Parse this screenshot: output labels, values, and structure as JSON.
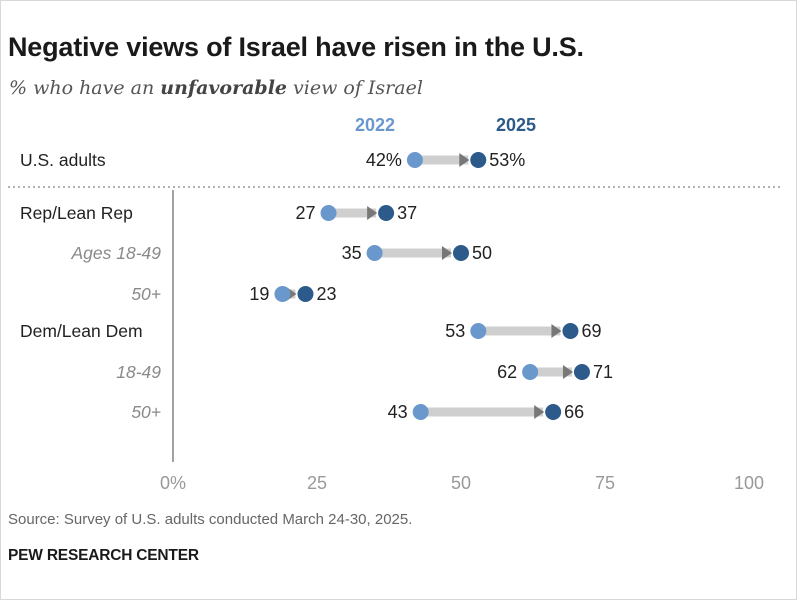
{
  "title": "Negative views of Israel have risen in the U.S.",
  "subtitle": {
    "prefix": "% who have an ",
    "emphasis": "unfavorable",
    "suffix": " view of Israel"
  },
  "source": "Source: Survey of U.S. adults conducted March 24-30, 2025.",
  "brand": "PEW RESEARCH CENTER",
  "colors": {
    "y2022": "#6a98cc",
    "y2025": "#2c5a8a",
    "connector": "#cfcfcf",
    "arrow": "#777777",
    "axis": "#999999",
    "label_main": "#222222",
    "label_sub": "#8a8a8a"
  },
  "chart_data": {
    "type": "dot-plot",
    "xlim": [
      0,
      100
    ],
    "x_ticks": [
      {
        "value": 0,
        "label": "0%"
      },
      {
        "value": 25,
        "label": "25"
      },
      {
        "value": 50,
        "label": "50"
      },
      {
        "value": 75,
        "label": "75"
      },
      {
        "value": 100,
        "label": "100"
      }
    ],
    "series": [
      {
        "name": "2022"
      },
      {
        "name": "2025"
      }
    ],
    "rows": [
      {
        "label": "U.S. adults",
        "style": "main",
        "v2022": 42,
        "v2025": 53,
        "label2022": "42%",
        "label2025": "53%"
      },
      {
        "label": "Rep/Lean Rep",
        "style": "main",
        "v2022": 27,
        "v2025": 37,
        "label2022": "27",
        "label2025": "37"
      },
      {
        "label": "Ages 18-49",
        "style": "sub",
        "v2022": 35,
        "v2025": 50,
        "label2022": "35",
        "label2025": "50"
      },
      {
        "label": "50+",
        "style": "sub",
        "v2022": 19,
        "v2025": 23,
        "label2022": "19",
        "label2025": "23"
      },
      {
        "label": "Dem/Lean Dem",
        "style": "main",
        "v2022": 53,
        "v2025": 69,
        "label2022": "53",
        "label2025": "69"
      },
      {
        "label": "18-49",
        "style": "sub",
        "v2022": 62,
        "v2025": 71,
        "label2022": "62",
        "label2025": "71"
      },
      {
        "label": "50+",
        "style": "sub",
        "v2022": 43,
        "v2025": 66,
        "label2022": "43",
        "label2025": "66"
      }
    ],
    "grid": false,
    "legend": "top"
  }
}
